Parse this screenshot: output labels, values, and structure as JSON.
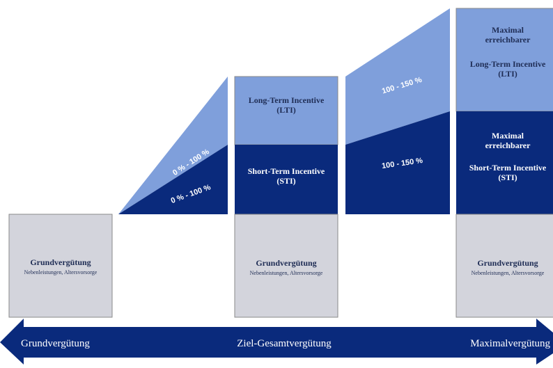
{
  "colors": {
    "light_blue": "#7f9fdb",
    "dark_blue": "#0a2a7c",
    "grey": "#d3d4dc",
    "grey_border": "#8a8a8a",
    "dark_text": "#1f2d55",
    "white": "#ffffff"
  },
  "column1": {
    "base_title": "Grundvergütung",
    "base_subtitle": "Nebenleistungen, Altersvorsorge"
  },
  "wedge1": {
    "lti_range": "0 % - 100 %",
    "sti_range": "0 % - 100 %"
  },
  "column2": {
    "lti_line1": "Long-Term Incentive",
    "lti_line2": "(LTI)",
    "sti_line1": "Short-Term Incentive",
    "sti_line2": "(STI)",
    "base_title": "Grundvergütung",
    "base_subtitle": "Nebenleistungen, Altersvorsorge"
  },
  "wedge2": {
    "lti_range": "100 - 150 %",
    "sti_range": "100 - 150 %"
  },
  "column3": {
    "lti_line1": "Maximal",
    "lti_line2": "erreichbarer",
    "lti_line3": "Long-Term Incentive",
    "lti_line4": "(LTI)",
    "sti_line1": "Maximal",
    "sti_line2": "erreichbarer",
    "sti_line3": "Short-Term Incentive",
    "sti_line4": "(STI)",
    "base_title": "Grundvergütung",
    "base_subtitle": "Nebenleistungen, Altersvorsorge"
  },
  "arrow": {
    "left_label": "Grundvergütung",
    "center_label": "Ziel-Gesamtvergütung",
    "right_label": "Maximalvergütung"
  }
}
